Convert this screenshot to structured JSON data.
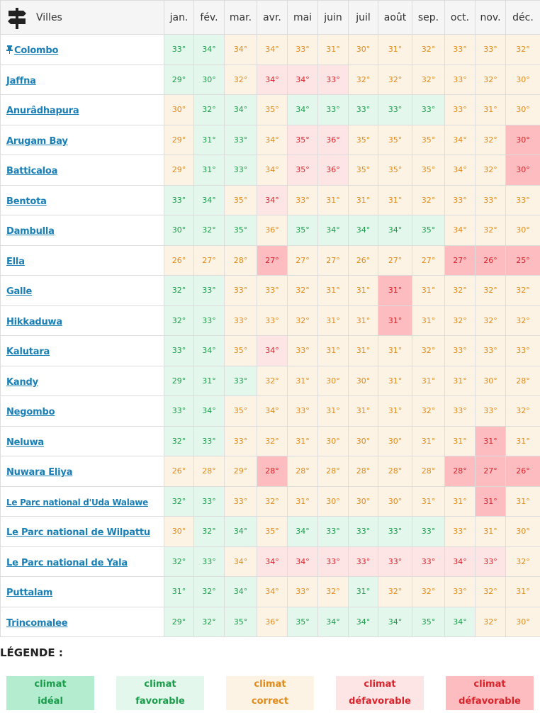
{
  "header": {
    "cities_label": "Villes",
    "months": [
      "jan.",
      "fév.",
      "mar.",
      "avr.",
      "mai",
      "juin",
      "juil",
      "août",
      "sep.",
      "oct.",
      "nov.",
      "déc."
    ]
  },
  "rows": [
    {
      "city": "Colombo",
      "pinned": true,
      "temps": [
        "33°",
        "34°",
        "34°",
        "34°",
        "33°",
        "31°",
        "30°",
        "31°",
        "32°",
        "33°",
        "33°",
        "32°"
      ],
      "classes": [
        2,
        2,
        3,
        3,
        3,
        3,
        3,
        3,
        3,
        3,
        3,
        3
      ]
    },
    {
      "city": "Jaffna",
      "temps": [
        "29°",
        "30°",
        "32°",
        "34°",
        "34°",
        "33°",
        "32°",
        "32°",
        "32°",
        "33°",
        "32°",
        "30°"
      ],
      "classes": [
        2,
        2,
        3,
        4,
        4,
        4,
        3,
        3,
        3,
        3,
        3,
        3
      ]
    },
    {
      "city": "Anurâdhapura",
      "temps": [
        "30°",
        "32°",
        "34°",
        "35°",
        "34°",
        "33°",
        "33°",
        "33°",
        "33°",
        "33°",
        "31°",
        "30°"
      ],
      "classes": [
        3,
        2,
        2,
        3,
        2,
        2,
        2,
        2,
        2,
        3,
        3,
        3
      ]
    },
    {
      "city": "Arugam Bay",
      "temps": [
        "29°",
        "31°",
        "33°",
        "34°",
        "35°",
        "36°",
        "35°",
        "35°",
        "35°",
        "34°",
        "32°",
        "30°"
      ],
      "classes": [
        3,
        2,
        2,
        3,
        4,
        4,
        3,
        3,
        3,
        3,
        3,
        5
      ]
    },
    {
      "city": "Batticaloa",
      "temps": [
        "29°",
        "31°",
        "33°",
        "34°",
        "35°",
        "36°",
        "35°",
        "35°",
        "35°",
        "34°",
        "32°",
        "30°"
      ],
      "classes": [
        3,
        2,
        2,
        3,
        4,
        4,
        3,
        3,
        3,
        3,
        3,
        5
      ]
    },
    {
      "city": "Bentota",
      "temps": [
        "33°",
        "34°",
        "35°",
        "34°",
        "33°",
        "31°",
        "31°",
        "31°",
        "32°",
        "33°",
        "33°",
        "33°"
      ],
      "classes": [
        2,
        2,
        3,
        4,
        3,
        3,
        3,
        3,
        3,
        3,
        3,
        3
      ]
    },
    {
      "city": "Dambulla",
      "temps": [
        "30°",
        "32°",
        "35°",
        "36°",
        "35°",
        "34°",
        "34°",
        "34°",
        "35°",
        "34°",
        "32°",
        "30°"
      ],
      "classes": [
        2,
        2,
        2,
        3,
        2,
        2,
        2,
        2,
        2,
        3,
        3,
        3
      ]
    },
    {
      "city": "Ella",
      "temps": [
        "26°",
        "27°",
        "28°",
        "27°",
        "27°",
        "27°",
        "26°",
        "27°",
        "27°",
        "27°",
        "26°",
        "25°"
      ],
      "classes": [
        3,
        3,
        3,
        5,
        3,
        3,
        3,
        3,
        3,
        5,
        5,
        5
      ]
    },
    {
      "city": "Galle",
      "temps": [
        "32°",
        "33°",
        "33°",
        "33°",
        "32°",
        "31°",
        "31°",
        "31°",
        "31°",
        "32°",
        "32°",
        "32°"
      ],
      "classes": [
        2,
        2,
        3,
        3,
        3,
        3,
        3,
        5,
        3,
        3,
        3,
        3
      ]
    },
    {
      "city": "Hikkaduwa",
      "temps": [
        "32°",
        "33°",
        "33°",
        "33°",
        "32°",
        "31°",
        "31°",
        "31°",
        "31°",
        "32°",
        "32°",
        "32°"
      ],
      "classes": [
        2,
        2,
        3,
        3,
        3,
        3,
        3,
        5,
        3,
        3,
        3,
        3
      ]
    },
    {
      "city": "Kalutara",
      "temps": [
        "33°",
        "34°",
        "35°",
        "34°",
        "33°",
        "31°",
        "31°",
        "31°",
        "32°",
        "33°",
        "33°",
        "33°"
      ],
      "classes": [
        2,
        2,
        3,
        4,
        3,
        3,
        3,
        3,
        3,
        3,
        3,
        3
      ]
    },
    {
      "city": "Kandy",
      "temps": [
        "29°",
        "31°",
        "33°",
        "32°",
        "31°",
        "30°",
        "30°",
        "31°",
        "31°",
        "31°",
        "30°",
        "28°"
      ],
      "classes": [
        2,
        2,
        2,
        3,
        3,
        3,
        3,
        3,
        3,
        3,
        3,
        3
      ]
    },
    {
      "city": "Negombo",
      "temps": [
        "33°",
        "34°",
        "35°",
        "34°",
        "33°",
        "31°",
        "31°",
        "31°",
        "32°",
        "33°",
        "33°",
        "32°"
      ],
      "classes": [
        2,
        2,
        3,
        3,
        3,
        3,
        3,
        3,
        3,
        3,
        3,
        3
      ]
    },
    {
      "city": "Neluwa",
      "temps": [
        "32°",
        "33°",
        "33°",
        "32°",
        "31°",
        "30°",
        "30°",
        "30°",
        "31°",
        "31°",
        "31°",
        "31°"
      ],
      "classes": [
        2,
        2,
        3,
        3,
        3,
        3,
        3,
        3,
        3,
        3,
        5,
        3
      ]
    },
    {
      "city": "Nuwara Eliya",
      "temps": [
        "26°",
        "28°",
        "29°",
        "28°",
        "28°",
        "28°",
        "28°",
        "28°",
        "28°",
        "28°",
        "27°",
        "26°"
      ],
      "classes": [
        3,
        3,
        3,
        5,
        3,
        3,
        3,
        3,
        3,
        5,
        5,
        5
      ]
    },
    {
      "city": "Le Parc national d'Uda Walawe",
      "long": true,
      "temps": [
        "32°",
        "33°",
        "33°",
        "32°",
        "31°",
        "30°",
        "30°",
        "30°",
        "31°",
        "31°",
        "31°",
        "31°"
      ],
      "classes": [
        2,
        2,
        3,
        3,
        3,
        3,
        3,
        3,
        3,
        3,
        5,
        3
      ]
    },
    {
      "city": "Le Parc national de Wilpattu",
      "temps": [
        "30°",
        "32°",
        "34°",
        "35°",
        "34°",
        "33°",
        "33°",
        "33°",
        "33°",
        "33°",
        "31°",
        "30°"
      ],
      "classes": [
        3,
        2,
        2,
        3,
        2,
        2,
        2,
        2,
        2,
        3,
        3,
        3
      ]
    },
    {
      "city": "Le Parc national de Yala",
      "temps": [
        "32°",
        "33°",
        "34°",
        "34°",
        "34°",
        "33°",
        "33°",
        "33°",
        "33°",
        "34°",
        "33°",
        "32°"
      ],
      "classes": [
        2,
        2,
        3,
        4,
        4,
        4,
        4,
        4,
        4,
        4,
        4,
        3
      ]
    },
    {
      "city": "Puttalam",
      "temps": [
        "31°",
        "32°",
        "34°",
        "34°",
        "33°",
        "32°",
        "31°",
        "32°",
        "32°",
        "33°",
        "32°",
        "31°"
      ],
      "classes": [
        2,
        2,
        2,
        3,
        3,
        3,
        2,
        3,
        3,
        3,
        3,
        3
      ]
    },
    {
      "city": "Trincomalee",
      "temps": [
        "29°",
        "32°",
        "35°",
        "36°",
        "35°",
        "34°",
        "34°",
        "34°",
        "35°",
        "34°",
        "32°",
        "30°"
      ],
      "classes": [
        2,
        2,
        2,
        3,
        2,
        2,
        2,
        2,
        2,
        2,
        3,
        3
      ]
    }
  ],
  "legend": {
    "title": "LÉGENDE :",
    "items": [
      {
        "line1": "climat",
        "line2": "idéal"
      },
      {
        "line1": "climat",
        "line2": "favorable"
      },
      {
        "line1": "climat",
        "line2": "correct"
      },
      {
        "line1": "climat",
        "line2": "défavorable"
      },
      {
        "line1": "climat",
        "line2": "défavorable"
      }
    ]
  }
}
